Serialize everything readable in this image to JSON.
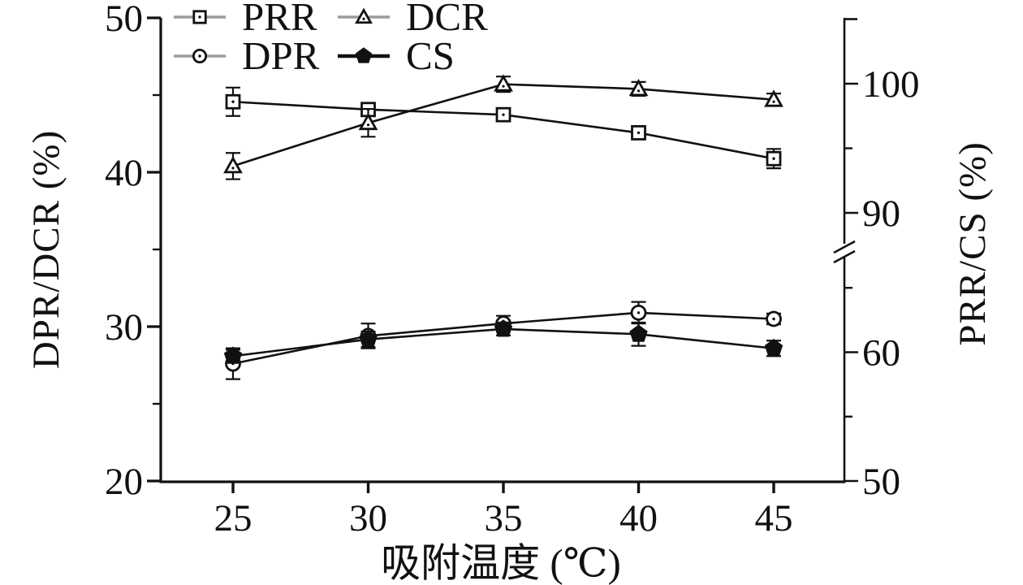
{
  "colors": {
    "ink": "#111111",
    "background": "#ffffff",
    "legend_line_gray": "#9c9c9c",
    "open_marker_fill": "#ffffff"
  },
  "chart_data": {
    "type": "line",
    "title": "",
    "x_label": "吸附温度 (℃)",
    "x": [
      25,
      30,
      35,
      40,
      45
    ],
    "x_tick_labels": [
      "25",
      "30",
      "35",
      "40",
      "45"
    ],
    "left_axis": {
      "label": "DPR/DCR (%)",
      "range": [
        20,
        50
      ],
      "major_ticks": [
        20,
        30,
        40,
        50
      ],
      "minor_ticks": [
        25,
        35,
        45
      ]
    },
    "right_axis": {
      "label": "PRR/CS (%)",
      "broken": true,
      "break_between": [
        65,
        90
      ],
      "lower_segment_range": [
        50,
        65
      ],
      "upper_segment_range": [
        90,
        105
      ],
      "major_ticks": [
        50,
        60,
        90,
        100
      ],
      "minor_ticks": [
        55,
        65,
        95
      ]
    },
    "legend_position": "top-left-inside",
    "grid": false,
    "series": [
      {
        "name": "PRR",
        "axis": "right",
        "marker": "open-square",
        "values": [
          98.6,
          98.0,
          97.6,
          96.2,
          94.2
        ],
        "errors": [
          1.1,
          0.5,
          0.5,
          0.4,
          0.75
        ]
      },
      {
        "name": "DCR",
        "axis": "left",
        "marker": "open-triangle",
        "values": [
          40.4,
          43.2,
          45.7,
          45.4,
          44.7
        ],
        "errors": [
          0.85,
          0.9,
          0.5,
          0.45,
          0.4
        ]
      },
      {
        "name": "DPR",
        "axis": "left",
        "marker": "open-circle",
        "values": [
          27.6,
          29.4,
          30.2,
          30.9,
          30.5
        ],
        "errors": [
          1.0,
          0.8,
          0.5,
          0.7,
          0.35
        ]
      },
      {
        "name": "CS",
        "axis": "right",
        "marker": "filled-pentagon",
        "values": [
          59.7,
          61.0,
          61.8,
          61.4,
          60.3
        ],
        "errors": [
          0.5,
          0.6,
          0.5,
          0.9,
          0.6
        ]
      }
    ]
  }
}
